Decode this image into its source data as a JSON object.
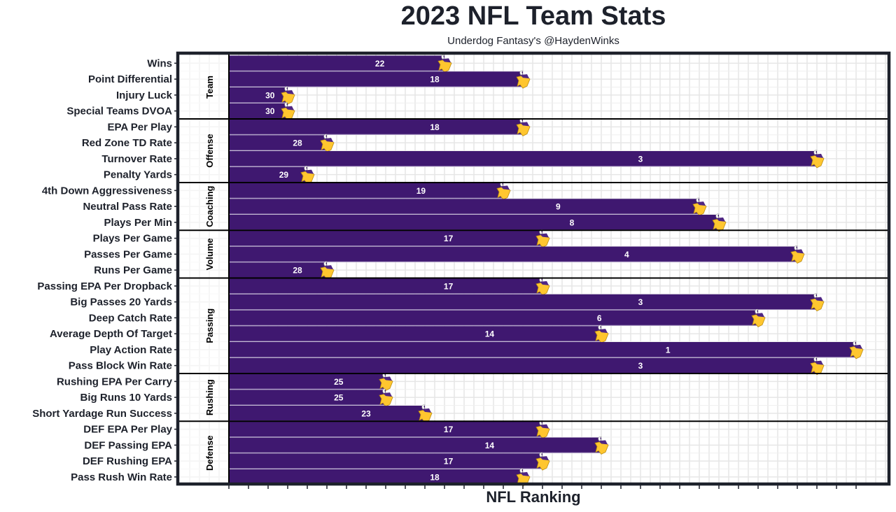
{
  "chart_data": {
    "type": "bar",
    "orientation": "horizontal",
    "title": "2023 NFL Team Stats",
    "subtitle": "Underdog Fantasy's @HaydenWinks",
    "xlabel": "NFL Ranking",
    "ylabel": "",
    "xlim": [
      1,
      32
    ],
    "rank_direction": "better rank = longer bar",
    "bar_color": "#3f1870",
    "grid": true,
    "groups": [
      {
        "name": "Team",
        "items": [
          {
            "label": "Wins",
            "rank": 22
          },
          {
            "label": "Point Differential",
            "rank": 18
          },
          {
            "label": "Injury Luck",
            "rank": 30
          },
          {
            "label": "Special Teams DVOA",
            "rank": 30
          }
        ]
      },
      {
        "name": "Offense",
        "items": [
          {
            "label": "EPA Per Play",
            "rank": 18
          },
          {
            "label": "Red Zone TD Rate",
            "rank": 28
          },
          {
            "label": "Turnover Rate",
            "rank": 3
          },
          {
            "label": "Penalty Yards",
            "rank": 29
          }
        ]
      },
      {
        "name": "Coaching",
        "items": [
          {
            "label": "4th Down Aggressiveness",
            "rank": 19
          },
          {
            "label": "Neutral Pass Rate",
            "rank": 9
          },
          {
            "label": "Plays Per Min",
            "rank": 8
          }
        ]
      },
      {
        "name": "Volume",
        "items": [
          {
            "label": "Plays Per Game",
            "rank": 17
          },
          {
            "label": "Passes Per Game",
            "rank": 4
          },
          {
            "label": "Runs Per Game",
            "rank": 28
          }
        ]
      },
      {
        "name": "Passing",
        "items": [
          {
            "label": "Passing EPA Per Dropback",
            "rank": 17
          },
          {
            "label": "Big Passes 20 Yards",
            "rank": 3
          },
          {
            "label": "Deep Catch Rate",
            "rank": 6
          },
          {
            "label": "Average Depth Of Target",
            "rank": 14
          },
          {
            "label": "Play Action Rate",
            "rank": 1
          },
          {
            "label": "Pass Block Win Rate",
            "rank": 3
          }
        ]
      },
      {
        "name": "Rushing",
        "items": [
          {
            "label": "Rushing EPA Per Carry",
            "rank": 25
          },
          {
            "label": "Big Runs 10 Yards",
            "rank": 25
          },
          {
            "label": "Short Yardage Run Success",
            "rank": 23
          }
        ]
      },
      {
        "name": "Defense",
        "items": [
          {
            "label": "DEF EPA Per Play",
            "rank": 17
          },
          {
            "label": "DEF Passing EPA",
            "rank": 14
          },
          {
            "label": "DEF Rushing EPA",
            "rank": 17
          },
          {
            "label": "Pass Rush Win Rate",
            "rank": 18
          }
        ]
      }
    ],
    "marker_icon": "vikings-logo-icon"
  }
}
